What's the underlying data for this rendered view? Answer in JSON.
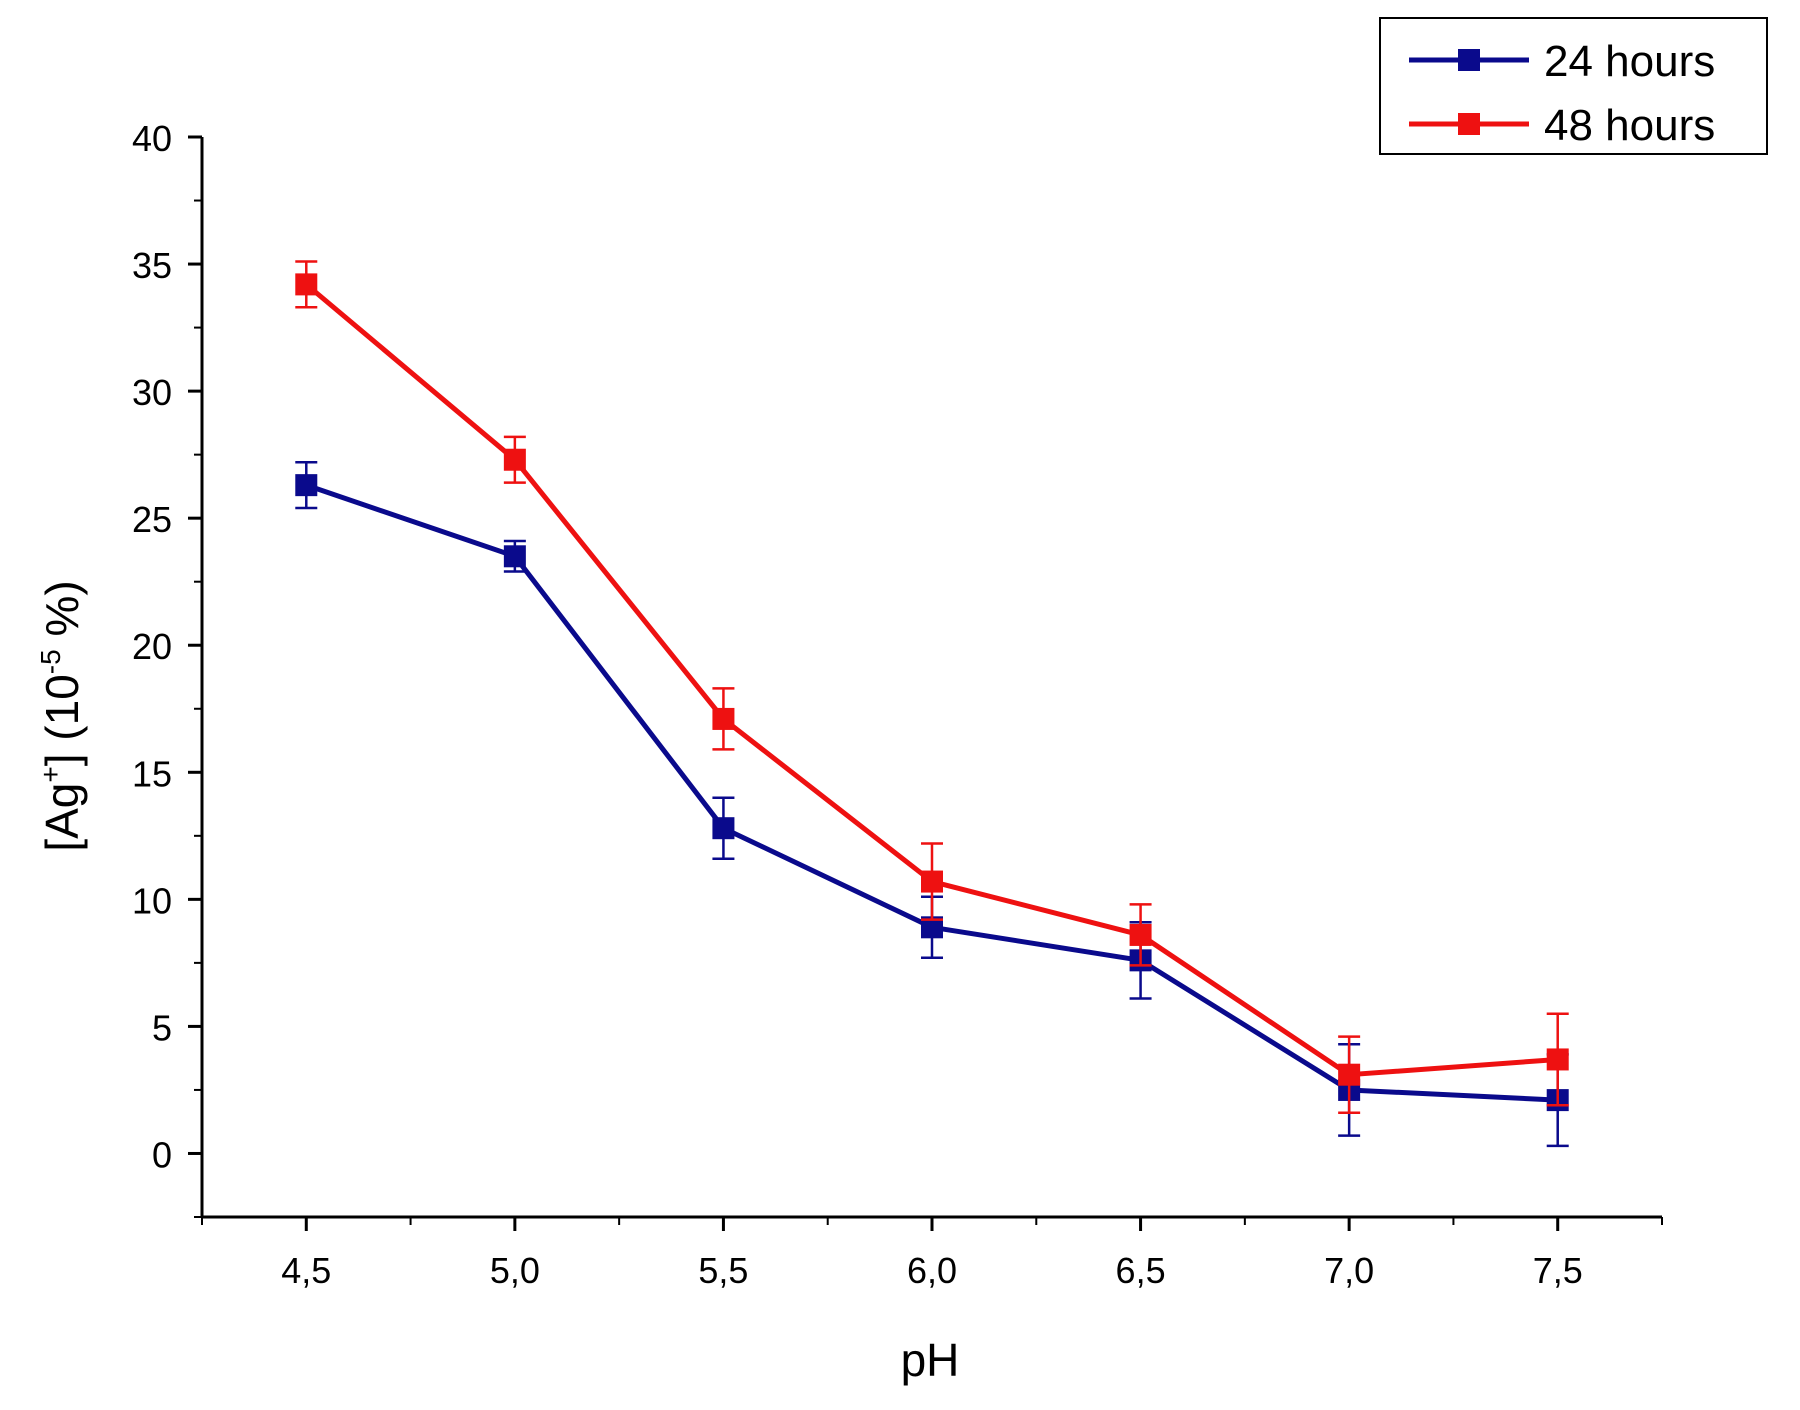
{
  "chart_data": {
    "type": "line",
    "title": "",
    "xlabel": "pH",
    "ylabel_main": "[Ag",
    "ylabel_sup": "+",
    "ylabel_mid": "] (10",
    "ylabel_exp": "-5",
    "ylabel_end": " %)",
    "xlim": [
      4.25,
      7.75
    ],
    "ylim": [
      -2.5,
      40
    ],
    "x_ticks": [
      {
        "value": 4.5,
        "label": "4,5"
      },
      {
        "value": 5.0,
        "label": "5,0"
      },
      {
        "value": 5.5,
        "label": "5,5"
      },
      {
        "value": 6.0,
        "label": "6,0"
      },
      {
        "value": 6.5,
        "label": "6,5"
      },
      {
        "value": 7.0,
        "label": "7,0"
      },
      {
        "value": 7.5,
        "label": "7,5"
      }
    ],
    "y_ticks": [
      {
        "value": 0,
        "label": "0"
      },
      {
        "value": 5,
        "label": "5"
      },
      {
        "value": 10,
        "label": "10"
      },
      {
        "value": 15,
        "label": "15"
      },
      {
        "value": 20,
        "label": "20"
      },
      {
        "value": 25,
        "label": "25"
      },
      {
        "value": 30,
        "label": "30"
      },
      {
        "value": 35,
        "label": "35"
      },
      {
        "value": 40,
        "label": "40"
      }
    ],
    "x_minor_step": 0.25,
    "y_minor_step": 2.5,
    "legend_position": "top-right",
    "series": [
      {
        "name": "24 hours",
        "color": "#0a0a8c",
        "x": [
          4.5,
          5.0,
          5.5,
          6.0,
          6.5,
          7.0,
          7.5
        ],
        "values": [
          26.3,
          23.5,
          12.8,
          8.9,
          7.6,
          2.5,
          2.1
        ],
        "errors": [
          0.9,
          0.6,
          1.2,
          1.2,
          1.5,
          1.8,
          1.8
        ]
      },
      {
        "name": "48 hours",
        "color": "#ee1111",
        "x": [
          4.5,
          5.0,
          5.5,
          6.0,
          6.5,
          7.0,
          7.5
        ],
        "values": [
          34.2,
          27.3,
          17.1,
          10.7,
          8.6,
          3.1,
          3.7
        ],
        "errors": [
          0.9,
          0.9,
          1.2,
          1.5,
          1.2,
          1.5,
          1.8
        ]
      }
    ]
  }
}
